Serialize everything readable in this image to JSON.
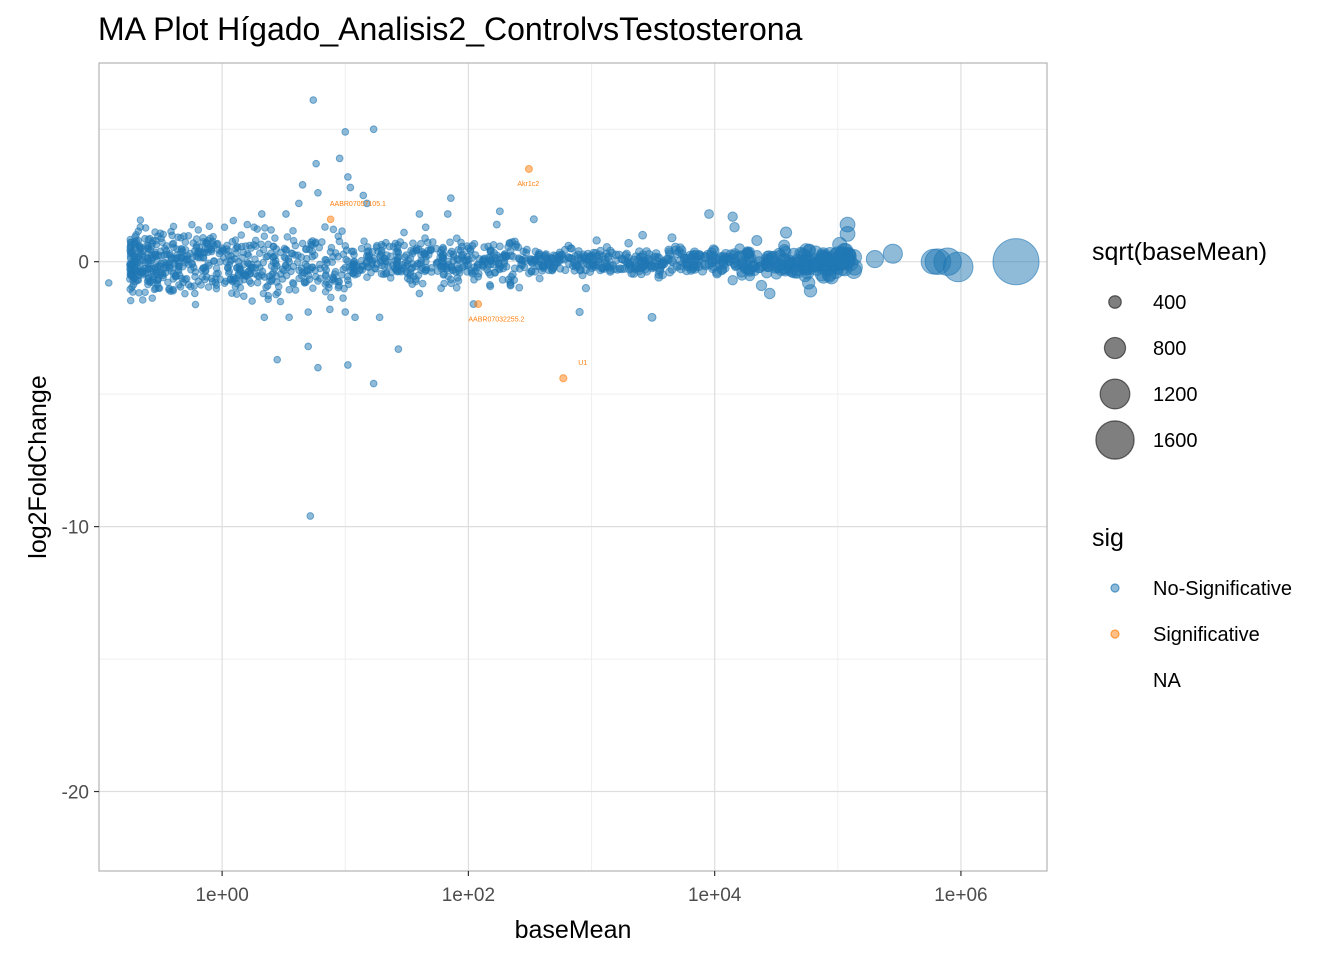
{
  "chart_data": {
    "type": "scatter",
    "title": "MA Plot Hígado_Analisis2_ControlvsTestosterona",
    "xlabel": "baseMean",
    "ylabel": "log2FoldChange",
    "x_scale": "log10",
    "xlim": [
      0.1,
      5000000
    ],
    "ylim": [
      -23,
      7.5
    ],
    "x_ticks": [
      {
        "value": 1,
        "label": "1e+00"
      },
      {
        "value": 100,
        "label": "1e+02"
      },
      {
        "value": 10000,
        "label": "1e+04"
      },
      {
        "value": 1000000,
        "label": "1e+06"
      }
    ],
    "y_ticks": [
      {
        "value": 0,
        "label": "0"
      },
      {
        "value": -10,
        "label": "-10"
      },
      {
        "value": -20,
        "label": "-20"
      }
    ],
    "grid": true,
    "colors": {
      "no_significative": "#1f77b4",
      "significative": "#ff7f0e",
      "grid_major": "#dedede",
      "grid_minor": "#efefef",
      "panel_border": "#b3b3b3"
    },
    "series": [
      {
        "name": "No-Significative",
        "color": "#1f77b4",
        "points": [
          [
            5.5,
            6.1
          ],
          [
            10,
            4.9
          ],
          [
            17,
            5.0
          ],
          [
            9,
            3.9
          ],
          [
            5.8,
            3.7
          ],
          [
            10.5,
            3.2
          ],
          [
            4.5,
            2.9
          ],
          [
            11,
            2.8
          ],
          [
            6,
            2.6
          ],
          [
            14,
            2.5
          ],
          [
            4.2,
            2.2
          ],
          [
            15,
            2.2
          ],
          [
            3.3,
            1.8
          ],
          [
            72,
            2.4
          ],
          [
            68,
            1.8
          ],
          [
            40,
            1.8
          ],
          [
            180,
            1.9
          ],
          [
            340,
            1.6
          ],
          [
            9000,
            1.8
          ],
          [
            14000,
            1.7
          ],
          [
            120000,
            1.4
          ],
          [
            14500,
            1.3
          ],
          [
            120000,
            1.05
          ],
          [
            38000,
            1.1
          ],
          [
            2600,
            1.0
          ],
          [
            4500,
            0.9
          ],
          [
            22000,
            0.8
          ],
          [
            1100,
            0.8
          ],
          [
            650,
            0.6
          ],
          [
            2000,
            0.7
          ],
          [
            280000,
            0.3
          ],
          [
            600000,
            0.0
          ],
          [
            780000,
            0.0
          ],
          [
            650000,
            0.0
          ],
          [
            950000,
            -0.2
          ],
          [
            2800000,
            0.0
          ],
          [
            100000,
            0.3
          ],
          [
            200000,
            0.1
          ],
          [
            5000,
            0.3
          ],
          [
            14000,
            -0.7
          ],
          [
            24000,
            -0.9
          ],
          [
            58000,
            -0.8
          ],
          [
            60000,
            -1.1
          ],
          [
            28000,
            -1.2
          ],
          [
            900,
            -1.0
          ],
          [
            3100,
            -2.1
          ],
          [
            800,
            -1.9
          ],
          [
            110,
            -1.6
          ],
          [
            5.0,
            -1.9
          ],
          [
            3.5,
            -2.1
          ],
          [
            7.5,
            -1.8
          ],
          [
            10,
            -1.9
          ],
          [
            12,
            -2.1
          ],
          [
            19,
            -2.1
          ],
          [
            2.2,
            -2.1
          ],
          [
            2.8,
            -3.7
          ],
          [
            5.0,
            -3.2
          ],
          [
            6.0,
            -4.0
          ],
          [
            10.5,
            -3.9
          ],
          [
            27,
            -3.3
          ],
          [
            17,
            -4.6
          ],
          [
            5.2,
            -9.6
          ],
          [
            0.12,
            -0.8
          ],
          [
            0.2,
            -0.3
          ],
          [
            0.18,
            0.5
          ],
          [
            0.25,
            0.6
          ],
          [
            0.3,
            -0.7
          ],
          [
            0.4,
            -1.1
          ],
          [
            0.6,
            -1.2
          ],
          [
            1.5,
            -1.3
          ],
          [
            2.1,
            1.8
          ],
          [
            1.6,
            1.4
          ],
          [
            2.5,
            1.2
          ],
          [
            30,
            1.1
          ],
          [
            45,
            1.3
          ],
          [
            60,
            -1.0
          ],
          [
            40,
            -1.2
          ],
          [
            170,
            1.4
          ],
          [
            220,
            -0.9
          ]
        ]
      },
      {
        "name": "Significative",
        "color": "#ff7f0e",
        "points": [
          [
            310,
            3.5
          ],
          [
            7.6,
            1.6
          ],
          [
            120,
            -1.6
          ],
          [
            590,
            -4.4
          ]
        ]
      }
    ],
    "annotations": [
      {
        "label": "Akr1c2",
        "x": 250,
        "y": 2.85
      },
      {
        "label": "AABR07057105.1",
        "x": 7.5,
        "y": 2.1
      },
      {
        "label": "AABR07032255.2",
        "x": 100,
        "y": -2.25
      },
      {
        "label": "U1",
        "x": 780,
        "y": -3.9
      }
    ],
    "legend": {
      "placement": "right",
      "size_title": "sqrt(baseMean)",
      "size_items": [
        {
          "label": "400",
          "value": 400
        },
        {
          "label": "800",
          "value": 800
        },
        {
          "label": "1200",
          "value": 1200
        },
        {
          "label": "1600",
          "value": 1600
        }
      ],
      "color_title": "sig",
      "color_items": [
        {
          "label": "No-Significative",
          "color": "#1f77b4"
        },
        {
          "label": "Significative",
          "color": "#ff7f0e"
        },
        {
          "label": "NA",
          "color": ""
        }
      ]
    }
  }
}
